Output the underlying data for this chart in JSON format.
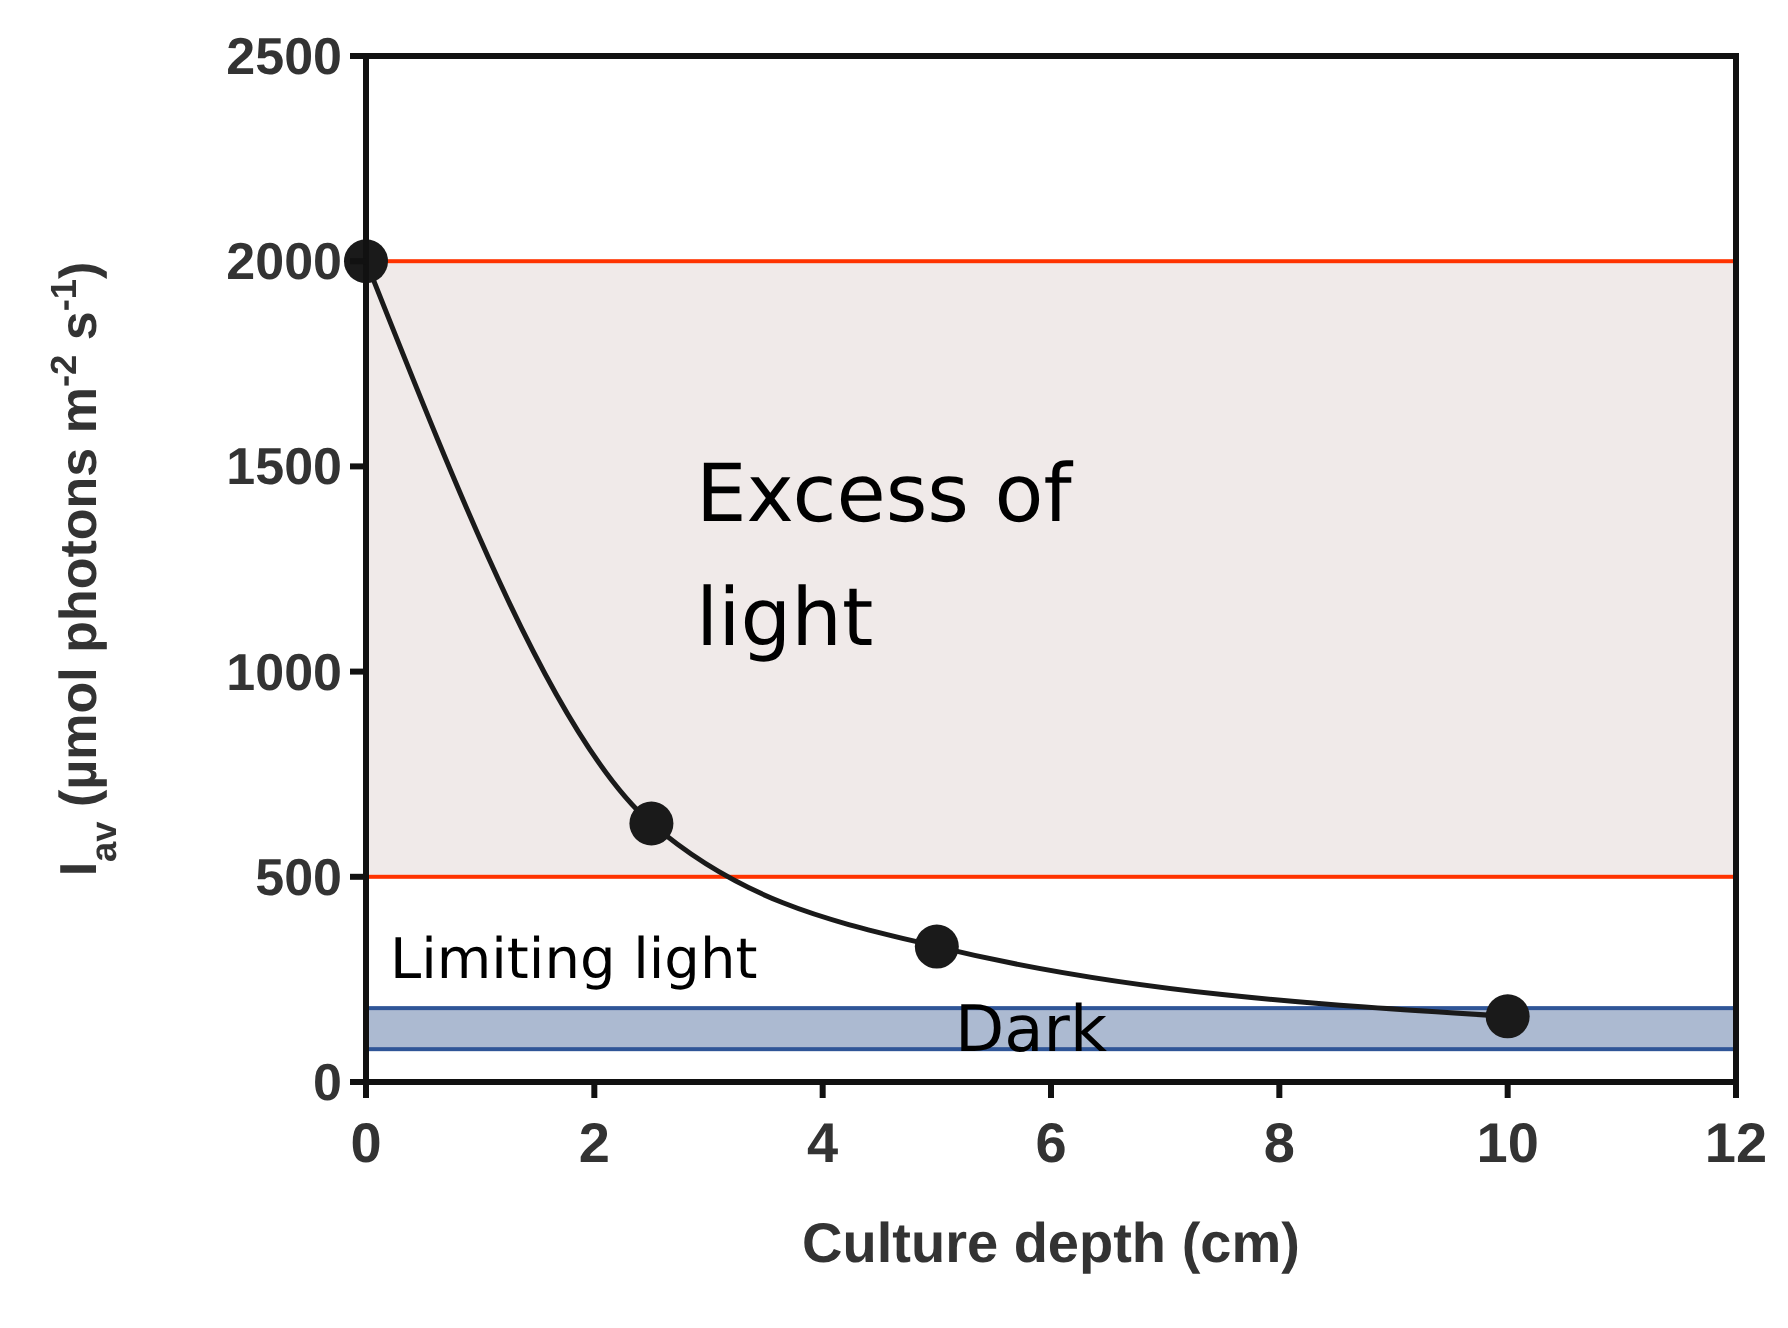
{
  "chart_data": {
    "type": "line",
    "xlabel": "Culture depth (cm)",
    "ylabel": "I$_{av}$ (µmol photons m$^{-2}$ s$^{-1}$)",
    "series": [
      {
        "color": "#1a1a1a",
        "x": [
          0,
          2.5,
          5,
          10
        ],
        "values": [
          2000,
          630,
          330,
          160
        ]
      }
    ],
    "marker": "circle",
    "line_style": "solid",
    "xlim": [
      0,
      12
    ],
    "xticks": [
      0,
      2,
      4,
      6,
      8,
      10,
      12
    ],
    "ylim": [
      0,
      2500
    ],
    "yticks": [
      0,
      500,
      1000,
      1500,
      2000,
      2500
    ],
    "bands": [
      {
        "axis": "y",
        "from": 500,
        "to": 2000,
        "label": "Excess of light",
        "color": "#ff3300"
      },
      {
        "axis": "y",
        "from": 80,
        "to": 180,
        "label": "Dark",
        "color": "#2f5597"
      }
    ],
    "annotations": [
      "Limiting light"
    ],
    "grid": false
  }
}
